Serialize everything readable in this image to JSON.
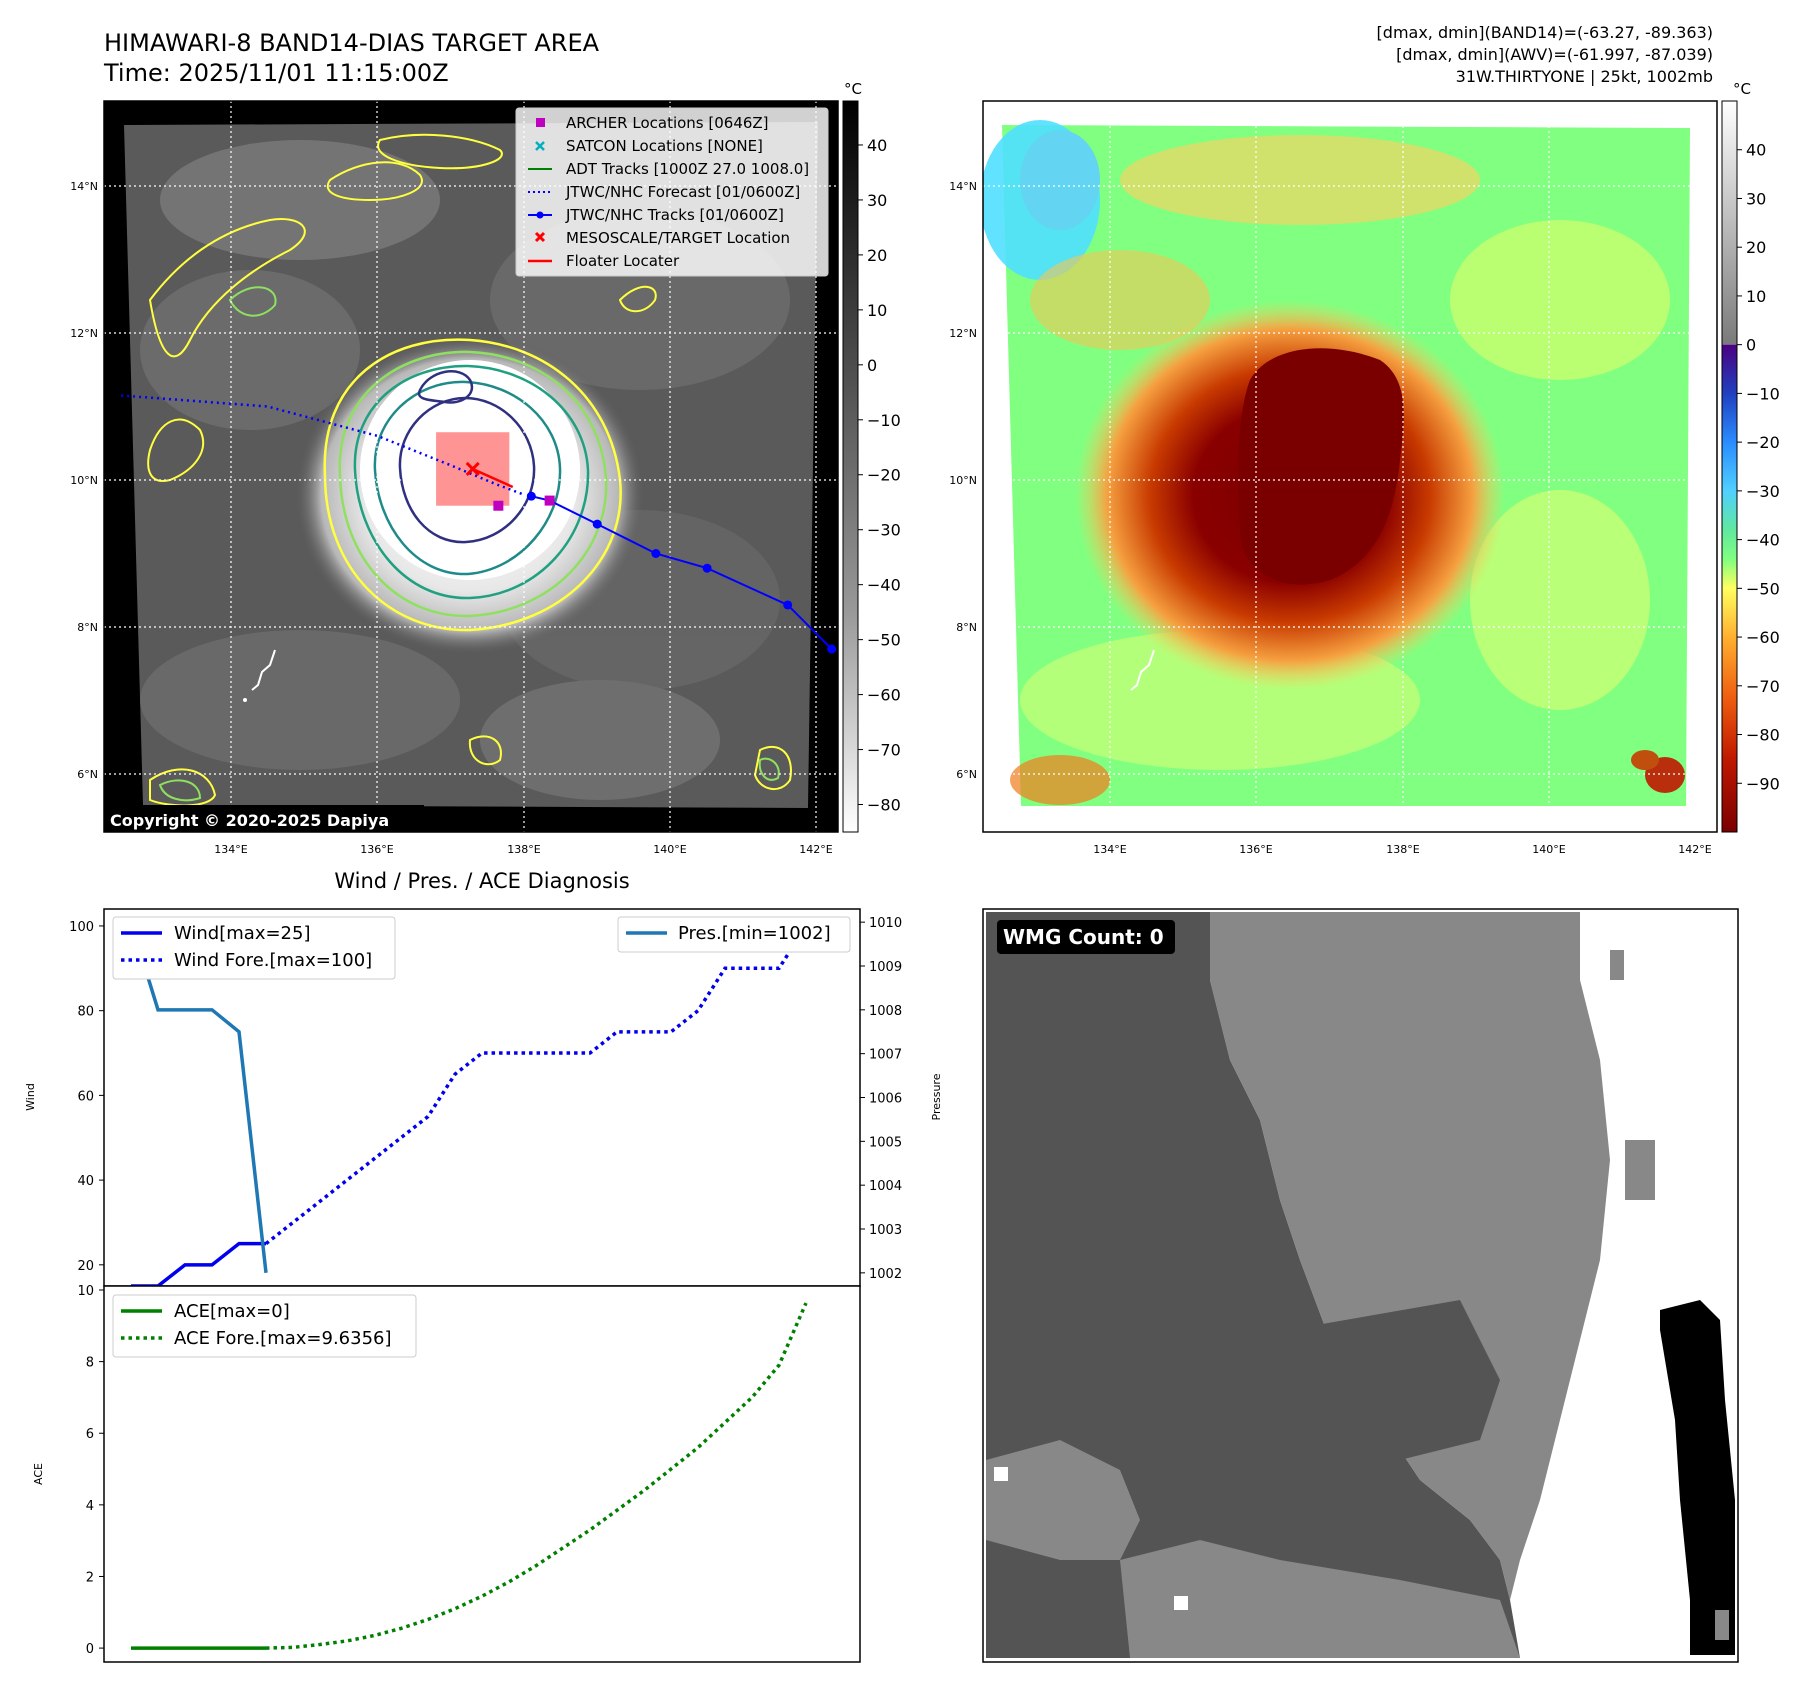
{
  "header": {
    "title_line1": "HIMAWARI-8 BAND14-DIAS TARGET AREA",
    "title_line2": "Time: 2025/11/01 11:15:00Z",
    "info_line1": "[dmax, dmin](BAND14)=(-63.27, -89.363)",
    "info_line2": "[dmax, dmin](AWV)=(-61.997, -87.039)",
    "info_line3": "31W.THIRTYONE | 25kt, 1002mb"
  },
  "map": {
    "lat_labels": [
      "14°N",
      "12°N",
      "10°N",
      "8°N",
      "6°N"
    ],
    "lon_labels": [
      "134°E",
      "136°E",
      "138°E",
      "140°E",
      "142°E"
    ],
    "copyright": "Copyright © 2020-2025 Dapiya",
    "legend": [
      {
        "label": "ARCHER Locations [0646Z]",
        "color": "#c000c0"
      },
      {
        "label": "SATCON Locations [NONE]",
        "color": "#00b0c0"
      },
      {
        "label": "ADT Tracks [1000Z 27.0 1008.0]",
        "color": "#008000"
      },
      {
        "label": "JTWC/NHC Forecast [01/0600Z]",
        "color": "#0000ff"
      },
      {
        "label": "JTWC/NHC Tracks [01/0600Z]",
        "color": "#0000ff"
      },
      {
        "label": "MESOSCALE/TARGET Location",
        "color": "#ff0000"
      },
      {
        "label": "Floater Locater",
        "color": "#ff0000"
      }
    ],
    "forecast_track": [
      [
        132.5,
        11.15
      ],
      [
        134.5,
        11.0
      ],
      [
        136.0,
        10.6
      ],
      [
        137.0,
        10.2
      ],
      [
        137.6,
        9.95
      ],
      [
        138.0,
        9.8
      ]
    ],
    "observed_track": [
      [
        138.1,
        9.78
      ],
      [
        138.35,
        9.72
      ],
      [
        139.0,
        9.4
      ],
      [
        139.8,
        9.0
      ],
      [
        140.5,
        8.8
      ],
      [
        141.6,
        8.3
      ],
      [
        142.2,
        7.7
      ]
    ],
    "archer_points": [
      [
        137.65,
        9.65
      ],
      [
        138.35,
        9.72
      ]
    ],
    "target": {
      "lon": 137.3,
      "lat": 10.15
    },
    "floater_box": {
      "lon_min": 136.8,
      "lon_max": 137.8,
      "lat_min": 9.65,
      "lat_max": 10.65
    }
  },
  "colorbar_gray": {
    "unit": "°C",
    "ticks": [
      40,
      30,
      20,
      10,
      0,
      -10,
      -20,
      -30,
      -40,
      -50,
      -60,
      -70,
      -80
    ],
    "tick_labels": [
      "40",
      "30",
      "20",
      "10",
      "0",
      "−10",
      "−20",
      "−30",
      "−40",
      "−50",
      "−60",
      "−70",
      "−80"
    ],
    "range": [
      -85,
      48
    ]
  },
  "colorbar_color": {
    "unit": "°C",
    "ticks": [
      40,
      30,
      20,
      10,
      0,
      -10,
      -20,
      -30,
      -40,
      -50,
      -60,
      -70,
      -80,
      -90
    ],
    "tick_labels": [
      "40",
      "30",
      "20",
      "10",
      "0",
      "−10",
      "−20",
      "−30",
      "−40",
      "−50",
      "−60",
      "−70",
      "−80",
      "−90"
    ],
    "range": [
      -100,
      50
    ]
  },
  "chart_data": [
    {
      "type": "line",
      "title": "Wind / Pres. / ACE Diagnosis",
      "ylabel": "Wind",
      "y2label": "Pressure",
      "ylim": [
        15,
        104
      ],
      "y2lim": [
        1001.7,
        1010.3
      ],
      "yticks": [
        20,
        40,
        60,
        80,
        100
      ],
      "y2ticks": [
        1002,
        1003,
        1004,
        1005,
        1006,
        1007,
        1008,
        1009,
        1010
      ],
      "xlim": [
        -1,
        27
      ],
      "legend_left": [
        "Wind[max=25]",
        "Wind Fore.[max=100]"
      ],
      "legend_right": [
        "Pres.[min=1002]"
      ],
      "series": [
        {
          "name": "Wind[max=25]",
          "axis": "left",
          "style": "solid",
          "color": "#0000ee",
          "x": [
            0,
            1,
            2,
            3,
            4,
            5
          ],
          "values": [
            15,
            15,
            20,
            20,
            25,
            25
          ]
        },
        {
          "name": "Wind Fore.[max=100]",
          "axis": "left",
          "style": "dotted",
          "color": "#0000ee",
          "x": [
            5,
            6,
            7,
            8,
            9,
            10,
            11,
            12,
            13,
            14,
            15,
            16,
            17,
            18,
            19,
            20,
            21,
            22,
            23,
            24,
            25
          ],
          "values": [
            25,
            30,
            35,
            40,
            45,
            50,
            55,
            65,
            70,
            70,
            70,
            70,
            70,
            75,
            75,
            75,
            80,
            90,
            90,
            90,
            100
          ]
        },
        {
          "name": "Pres.[min=1002]",
          "axis": "right",
          "style": "solid",
          "color": "#1f77b4",
          "x": [
            0,
            1,
            2,
            3,
            4,
            5
          ],
          "values": [
            1010,
            1008,
            1008,
            1008,
            1007.5,
            1002
          ]
        }
      ]
    },
    {
      "type": "line",
      "ylabel": "ACE",
      "ylim": [
        -0.5,
        10
      ],
      "yticks": [
        0,
        2,
        4,
        6,
        8,
        10
      ],
      "xlim": [
        -1,
        27
      ],
      "legend": [
        "ACE[max=0]",
        "ACE Fore.[max=9.6356]"
      ],
      "series": [
        {
          "name": "ACE[max=0]",
          "style": "solid",
          "color": "#008000",
          "x": [
            0,
            1,
            2,
            3,
            4,
            5
          ],
          "values": [
            0,
            0,
            0,
            0,
            0,
            0
          ]
        },
        {
          "name": "ACE Fore.[max=9.6356]",
          "style": "dotted",
          "color": "#008000",
          "x": [
            5,
            6,
            7,
            8,
            9,
            10,
            11,
            12,
            13,
            14,
            15,
            16,
            17,
            18,
            19,
            20,
            21,
            22,
            23,
            24,
            25
          ],
          "values": [
            0,
            0.02,
            0.1,
            0.2,
            0.35,
            0.55,
            0.8,
            1.1,
            1.45,
            1.85,
            2.3,
            2.8,
            3.3,
            3.85,
            4.4,
            5.0,
            5.6,
            6.3,
            7.0,
            7.9,
            9.6356
          ]
        }
      ]
    }
  ],
  "wmg": {
    "label": "WMG Count: 0"
  }
}
